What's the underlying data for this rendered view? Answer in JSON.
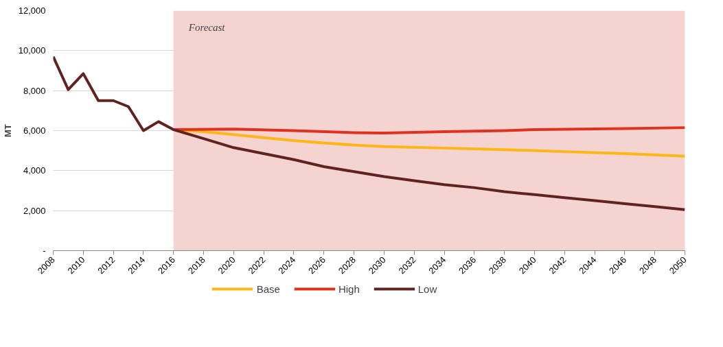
{
  "chart_data": {
    "type": "line",
    "ylabel": "MT",
    "xlim": [
      2008,
      2050
    ],
    "xticks": [
      2008,
      2010,
      2012,
      2014,
      2016,
      2018,
      2020,
      2022,
      2024,
      2026,
      2028,
      2030,
      2032,
      2034,
      2036,
      2038,
      2040,
      2042,
      2044,
      2046,
      2048,
      2050
    ],
    "ylim": [
      0,
      12000
    ],
    "yticks": [
      {
        "value": 0,
        "label": "-"
      },
      {
        "value": 2000,
        "label": "2,000"
      },
      {
        "value": 4000,
        "label": "4,000"
      },
      {
        "value": 6000,
        "label": "6,000"
      },
      {
        "value": 8000,
        "label": "8,000"
      },
      {
        "value": 10000,
        "label": "10,000"
      },
      {
        "value": 12000,
        "label": "12,000"
      }
    ],
    "grid": "y",
    "legend": "bottom",
    "bands": [
      {
        "axis": "x",
        "from": 2016,
        "to": 2050,
        "label": "Forecast",
        "color": "#f5d3d1"
      }
    ],
    "series": [
      {
        "name": "Base",
        "color": "#fdb614",
        "x": [
          2016,
          2018,
          2020,
          2022,
          2024,
          2026,
          2028,
          2030,
          2034,
          2038,
          2042,
          2046,
          2050
        ],
        "values": [
          6050,
          5950,
          5800,
          5650,
          5500,
          5380,
          5280,
          5200,
          5130,
          5050,
          4950,
          4850,
          4720
        ]
      },
      {
        "name": "High",
        "color": "#e0301e",
        "x": [
          2016,
          2020,
          2024,
          2028,
          2030,
          2034,
          2038,
          2040,
          2046,
          2050
        ],
        "values": [
          6050,
          6080,
          6000,
          5900,
          5880,
          5950,
          6000,
          6050,
          6100,
          6150
        ]
      },
      {
        "name": "Low",
        "color": "#602320",
        "x": [
          2008,
          2009,
          2010,
          2011,
          2012,
          2013,
          2014,
          2015,
          2016,
          2018,
          2020,
          2022,
          2024,
          2026,
          2028,
          2030,
          2032,
          2034,
          2036,
          2038,
          2040,
          2042,
          2044,
          2046,
          2048,
          2050
        ],
        "values": [
          9700,
          8050,
          8850,
          7500,
          7500,
          7200,
          6000,
          6450,
          6050,
          5600,
          5150,
          4850,
          4550,
          4200,
          3950,
          3700,
          3500,
          3300,
          3150,
          2950,
          2800,
          2650,
          2500,
          2350,
          2200,
          2050
        ]
      }
    ]
  }
}
